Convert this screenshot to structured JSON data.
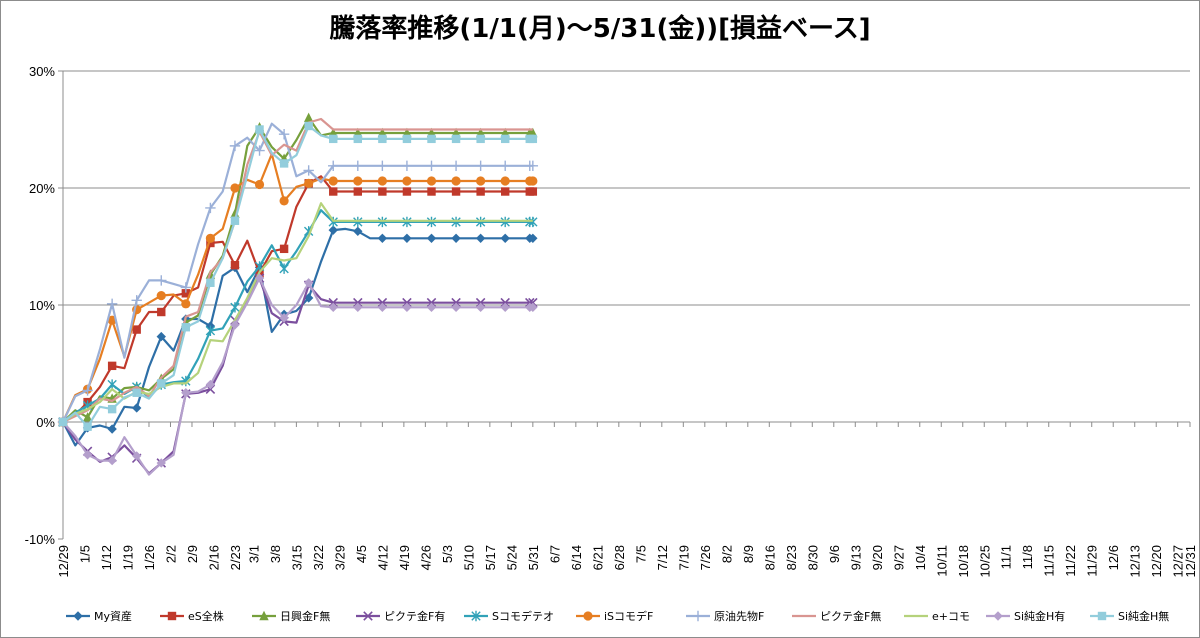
{
  "chart_data": {
    "type": "line",
    "title": "騰落率推移(1/1(月)～5/31(金))[損益ベース]",
    "ylim": [
      -0.1,
      0.3
    ],
    "yticks": [
      -0.1,
      0,
      0.1,
      0.2,
      0.3
    ],
    "ytick_labels": [
      "-10%",
      "0%",
      "10%",
      "20%",
      "30%"
    ],
    "grid": "horizontal",
    "legend_position": "bottom",
    "x_tick_labels": [
      "12/29",
      "1/5",
      "1/12",
      "1/19",
      "1/26",
      "2/2",
      "2/9",
      "2/16",
      "2/23",
      "3/1",
      "3/8",
      "3/15",
      "3/22",
      "3/29",
      "4/5",
      "4/12",
      "4/19",
      "4/26",
      "5/3",
      "5/10",
      "5/17",
      "5/24",
      "5/31",
      "6/7",
      "6/14",
      "6/21",
      "6/28",
      "7/5",
      "7/12",
      "7/19",
      "7/26",
      "8/2",
      "8/9",
      "8/16",
      "8/23",
      "8/30",
      "9/6",
      "9/13",
      "9/20",
      "9/27",
      "10/4",
      "10/11",
      "10/18",
      "10/25",
      "11/1",
      "11/8",
      "11/15",
      "11/22",
      "11/29",
      "12/6",
      "12/13",
      "12/20",
      "12/27",
      "12/31"
    ],
    "x_days": [
      -3,
      4,
      11,
      18,
      25,
      32,
      39,
      46,
      53,
      59,
      66,
      73,
      80,
      87,
      94,
      101,
      108,
      115,
      122,
      129,
      136,
      143,
      150,
      157,
      164,
      171,
      178,
      185,
      192,
      199,
      206,
      213,
      220,
      227,
      234,
      241,
      248,
      255,
      262,
      269,
      276,
      283,
      290,
      297,
      304,
      311,
      318,
      325,
      332,
      339,
      346,
      353,
      360,
      364
    ],
    "x_days_note_zero": "1/1",
    "data_x_days": [
      -3,
      1,
      5,
      9,
      13,
      17,
      21,
      25,
      29,
      33,
      37,
      41,
      45,
      49,
      53,
      57,
      61,
      65,
      69,
      73,
      77,
      81,
      85,
      89,
      93,
      97,
      101,
      105,
      109,
      113,
      117,
      121,
      125,
      129,
      133,
      137,
      141,
      145,
      149
    ],
    "series": [
      {
        "name": "My資産",
        "color": "#2e6fa7",
        "marker": "diamond",
        "values": [
          0,
          -0.02,
          -0.005,
          -0.003,
          -0.006,
          0.013,
          0.012,
          0.047,
          0.073,
          0.061,
          0.088,
          0.088,
          0.082,
          0.125,
          0.132,
          0.111,
          0.132,
          0.077,
          0.092,
          0.095,
          0.106,
          0.137,
          0.164,
          0.165,
          0.163,
          0.157,
          0.157,
          0.157,
          0.157,
          0.157,
          0.157,
          0.157,
          0.157,
          0.157,
          0.157,
          0.157,
          0.157,
          0.157,
          0.157
        ]
      },
      {
        "name": "eS全株",
        "color": "#c0392b",
        "marker": "square",
        "values": [
          0,
          0.006,
          0.017,
          0.03,
          0.048,
          0.046,
          0.079,
          0.094,
          0.094,
          0.108,
          0.11,
          0.115,
          0.153,
          0.154,
          0.134,
          0.155,
          0.127,
          0.146,
          0.148,
          0.184,
          0.204,
          0.21,
          0.197,
          0.197,
          0.197,
          0.197,
          0.197,
          0.197,
          0.197,
          0.197,
          0.197,
          0.197,
          0.197,
          0.197,
          0.197,
          0.197,
          0.197,
          0.197,
          0.197
        ]
      },
      {
        "name": "日興金F無",
        "color": "#76a03c",
        "marker": "triangle",
        "values": [
          0,
          0.01,
          0.004,
          0.022,
          0.02,
          0.029,
          0.03,
          0.027,
          0.037,
          0.045,
          0.085,
          0.091,
          0.126,
          0.142,
          0.178,
          0.236,
          0.252,
          0.235,
          0.225,
          0.241,
          0.26,
          0.245,
          0.247,
          0.247,
          0.247,
          0.247,
          0.247,
          0.247,
          0.247,
          0.247,
          0.247,
          0.247,
          0.247,
          0.247,
          0.247,
          0.247,
          0.247,
          0.247,
          0.247
        ]
      },
      {
        "name": "ピクテ金F有",
        "color": "#7b4f9e",
        "marker": "x",
        "values": [
          0,
          -0.015,
          -0.025,
          -0.034,
          -0.03,
          -0.02,
          -0.031,
          -0.044,
          -0.035,
          -0.025,
          0.024,
          0.025,
          0.028,
          0.048,
          0.087,
          0.105,
          0.123,
          0.093,
          0.086,
          0.085,
          0.117,
          0.105,
          0.102,
          0.102,
          0.102,
          0.102,
          0.102,
          0.102,
          0.102,
          0.102,
          0.102,
          0.102,
          0.102,
          0.102,
          0.102,
          0.102,
          0.102,
          0.102,
          0.102
        ]
      },
      {
        "name": "Sコモデテオ",
        "color": "#31a2b8",
        "marker": "asterisk",
        "values": [
          0,
          0.008,
          0.014,
          0.02,
          0.032,
          0.024,
          0.03,
          0.021,
          0.032,
          0.034,
          0.035,
          0.054,
          0.078,
          0.08,
          0.098,
          0.12,
          0.133,
          0.151,
          0.131,
          0.146,
          0.163,
          0.181,
          0.171,
          0.171,
          0.171,
          0.171,
          0.171,
          0.171,
          0.171,
          0.171,
          0.171,
          0.171,
          0.171,
          0.171,
          0.171,
          0.171,
          0.171,
          0.171,
          0.171
        ]
      },
      {
        "name": "iSコモデF",
        "color": "#e67e22",
        "marker": "circle",
        "values": [
          0,
          0.023,
          0.028,
          0.054,
          0.087,
          0.056,
          0.096,
          0.102,
          0.108,
          0.109,
          0.101,
          0.126,
          0.157,
          0.165,
          0.2,
          0.207,
          0.203,
          0.229,
          0.189,
          0.201,
          0.204,
          0.208,
          0.206,
          0.206,
          0.206,
          0.206,
          0.206,
          0.206,
          0.206,
          0.206,
          0.206,
          0.206,
          0.206,
          0.206,
          0.206,
          0.206,
          0.206,
          0.206,
          0.206
        ]
      },
      {
        "name": "原油先物F",
        "color": "#9bb0d8",
        "marker": "plus",
        "values": [
          0,
          0.022,
          0.027,
          0.062,
          0.101,
          0.055,
          0.104,
          0.121,
          0.121,
          0.118,
          0.115,
          0.152,
          0.183,
          0.197,
          0.236,
          0.243,
          0.232,
          0.255,
          0.246,
          0.21,
          0.215,
          0.205,
          0.219,
          0.219,
          0.219,
          0.219,
          0.219,
          0.219,
          0.219,
          0.219,
          0.219,
          0.219,
          0.219,
          0.219,
          0.219,
          0.219,
          0.219,
          0.219,
          0.219
        ]
      },
      {
        "name": "ピクテ金F無",
        "color": "#d99591",
        "marker": "none",
        "values": [
          0,
          0.005,
          0.01,
          0.02,
          0.018,
          0.025,
          0.03,
          0.022,
          0.038,
          0.048,
          0.09,
          0.094,
          0.128,
          0.14,
          0.172,
          0.22,
          0.248,
          0.228,
          0.237,
          0.232,
          0.256,
          0.259,
          0.25,
          0.25,
          0.25,
          0.25,
          0.25,
          0.25,
          0.25,
          0.25,
          0.25,
          0.25,
          0.25,
          0.25,
          0.25,
          0.25,
          0.25,
          0.25,
          0.25
        ]
      },
      {
        "name": "e+コモ",
        "color": "#b5d27b",
        "marker": "none",
        "values": [
          0,
          0.007,
          0.011,
          0.017,
          0.028,
          0.02,
          0.026,
          0.024,
          0.03,
          0.033,
          0.033,
          0.042,
          0.07,
          0.069,
          0.087,
          0.106,
          0.128,
          0.14,
          0.138,
          0.14,
          0.159,
          0.187,
          0.172,
          0.172,
          0.172,
          0.172,
          0.172,
          0.172,
          0.172,
          0.172,
          0.172,
          0.172,
          0.172,
          0.172,
          0.172,
          0.172,
          0.172,
          0.172,
          0.172
        ]
      },
      {
        "name": "Si純金H有",
        "color": "#b49fcc",
        "marker": "diamond",
        "values": [
          0,
          -0.012,
          -0.028,
          -0.033,
          -0.033,
          -0.013,
          -0.029,
          -0.045,
          -0.035,
          -0.028,
          0.025,
          0.026,
          0.032,
          0.051,
          0.083,
          0.102,
          0.123,
          0.1,
          0.089,
          0.1,
          0.119,
          0.099,
          0.098,
          0.098,
          0.098,
          0.098,
          0.098,
          0.098,
          0.098,
          0.098,
          0.098,
          0.098,
          0.098,
          0.098,
          0.098,
          0.098,
          0.098,
          0.098,
          0.098
        ]
      },
      {
        "name": "Si純金H無",
        "color": "#92cddc",
        "marker": "square",
        "values": [
          0,
          0.008,
          -0.004,
          0.013,
          0.011,
          0.021,
          0.025,
          0.02,
          0.033,
          0.04,
          0.081,
          0.086,
          0.119,
          0.14,
          0.172,
          0.211,
          0.25,
          0.23,
          0.221,
          0.228,
          0.253,
          0.245,
          0.242,
          0.242,
          0.242,
          0.242,
          0.242,
          0.242,
          0.242,
          0.242,
          0.242,
          0.242,
          0.242,
          0.242,
          0.242,
          0.242,
          0.242,
          0.242,
          0.242
        ]
      }
    ]
  }
}
